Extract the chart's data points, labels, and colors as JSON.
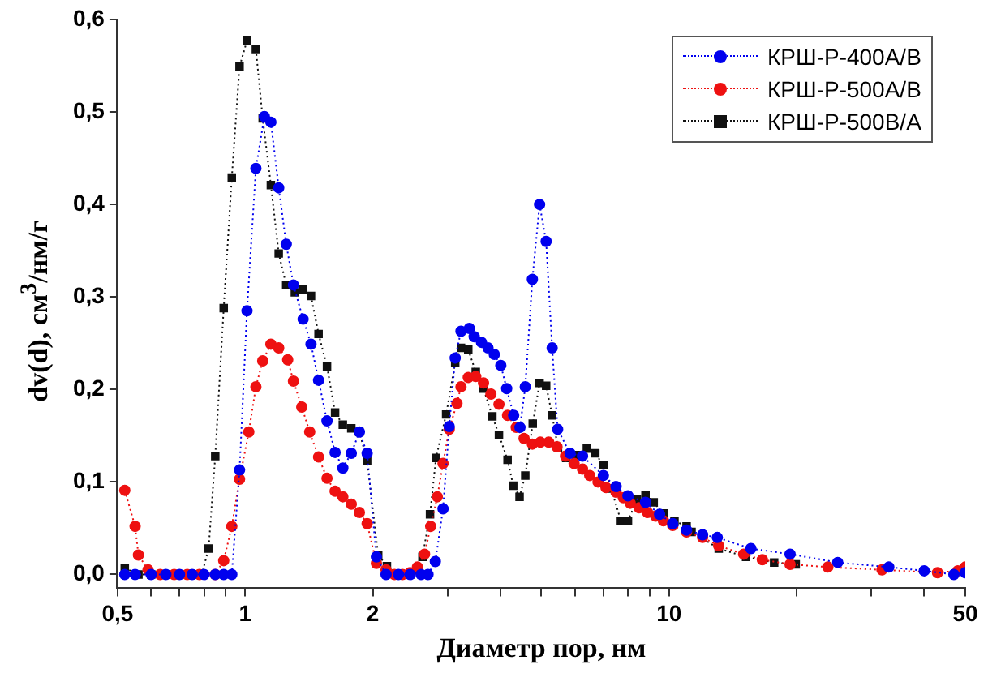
{
  "chart_data": {
    "type": "line",
    "xlabel": "Диаметр пор, нм",
    "ylabel": "dv(d), см$^{3}$/нм/г",
    "log": "x",
    "xlim": [
      0.5,
      50
    ],
    "xticks": [
      {
        "value": 0.5,
        "label": "0,5"
      },
      {
        "value": 0.6,
        "label": null
      },
      {
        "value": 0.7,
        "label": null
      },
      {
        "value": 0.8,
        "label": null
      },
      {
        "value": 0.9,
        "label": null
      },
      1,
      2,
      {
        "value": 3,
        "label": null
      },
      {
        "value": 4,
        "label": null
      },
      {
        "value": 5,
        "label": null
      },
      {
        "value": 6,
        "label": null
      },
      {
        "value": 7,
        "label": null
      },
      {
        "value": 8,
        "label": null
      },
      {
        "value": 9,
        "label": null
      },
      10,
      {
        "value": 20,
        "label": null
      },
      {
        "value": 30,
        "label": null
      },
      {
        "value": 40,
        "label": null
      },
      50
    ],
    "ylim": [
      -0.015,
      0.6
    ],
    "yticks": [
      {
        "value": 0,
        "label": "0,0"
      },
      {
        "value": 0.1,
        "label": "0,1"
      },
      {
        "value": 0.2,
        "label": "0,2"
      },
      {
        "value": 0.3,
        "label": "0,3"
      },
      {
        "value": 0.4,
        "label": "0,4"
      },
      {
        "value": 0.5,
        "label": "0,5"
      },
      {
        "value": 0.6,
        "label": "0,6"
      }
    ],
    "grid": false,
    "legend": "top right",
    "line_style": "dotted",
    "series": [
      {
        "name": "КРШ-Р-400А/В",
        "color": "#0000ee",
        "marker": "circle",
        "x": [
          0.52,
          0.55,
          0.6,
          0.65,
          0.7,
          0.75,
          0.8,
          0.85,
          0.89,
          0.93,
          0.97,
          1.01,
          1.06,
          1.11,
          1.15,
          1.2,
          1.25,
          1.3,
          1.37,
          1.43,
          1.49,
          1.56,
          1.63,
          1.7,
          1.78,
          1.86,
          1.94,
          2.04,
          2.15,
          2.3,
          2.45,
          2.6,
          2.7,
          2.81,
          2.93,
          3.03,
          3.13,
          3.23,
          3.38,
          3.47,
          3.61,
          3.74,
          3.87,
          4.01,
          4.14,
          4.3,
          4.45,
          4.58,
          4.76,
          4.95,
          5.13,
          5.3,
          5.46,
          5.84,
          6.25,
          7,
          7.5,
          8,
          8.8,
          9.5,
          10.2,
          11,
          12,
          13,
          15.6,
          19.3,
          25,
          33,
          40,
          47,
          50
        ],
        "values": [
          0,
          0,
          0,
          0,
          0,
          0,
          0,
          0,
          0,
          0,
          0.113,
          0.285,
          0.439,
          0.495,
          0.489,
          0.418,
          0.357,
          0.313,
          0.276,
          0.249,
          0.21,
          0.166,
          0.132,
          0.115,
          0.131,
          0.154,
          0.131,
          0.019,
          0,
          0,
          0,
          0,
          0,
          0.014,
          0.071,
          0.16,
          0.234,
          0.263,
          0.266,
          0.257,
          0.251,
          0.245,
          0.238,
          0.226,
          0.201,
          0.172,
          0.159,
          0.203,
          0.319,
          0.4,
          0.36,
          0.245,
          0.157,
          0.131,
          0.128,
          0.107,
          0.095,
          0.085,
          0.078,
          0.065,
          0.055,
          0.048,
          0.043,
          0.04,
          0.028,
          0.022,
          0.013,
          0.008,
          0.004,
          0,
          0.002
        ]
      },
      {
        "name": "КРШ-Р-500А/В",
        "color": "#ee1111",
        "marker": "circle",
        "x": [
          0.52,
          0.55,
          0.56,
          0.59,
          0.63,
          0.68,
          0.73,
          0.78,
          0.85,
          0.89,
          0.93,
          0.97,
          1.02,
          1.06,
          1.1,
          1.15,
          1.2,
          1.26,
          1.3,
          1.36,
          1.42,
          1.49,
          1.56,
          1.63,
          1.7,
          1.78,
          1.86,
          1.94,
          2.04,
          2.15,
          2.25,
          2.35,
          2.45,
          2.55,
          2.65,
          2.74,
          2.84,
          2.93,
          3.03,
          3.16,
          3.23,
          3.36,
          3.5,
          3.65,
          3.8,
          3.97,
          4.16,
          4.36,
          4.55,
          4.76,
          4.97,
          5.2,
          5.44,
          5.7,
          5.97,
          6.25,
          6.5,
          6.8,
          7.1,
          7.5,
          7.8,
          8.1,
          8.5,
          8.9,
          9.3,
          9.7,
          10.2,
          11,
          12,
          13.1,
          15,
          16.6,
          19.3,
          23.7,
          31.8,
          43,
          48,
          50
        ],
        "values": [
          0.091,
          0.052,
          0.021,
          0.005,
          0,
          0,
          0,
          0,
          0,
          0.015,
          0.052,
          0.103,
          0.154,
          0.203,
          0.231,
          0.249,
          0.245,
          0.232,
          0.209,
          0.181,
          0.154,
          0.127,
          0.104,
          0.09,
          0.084,
          0.076,
          0.067,
          0.055,
          0.012,
          0.005,
          0,
          0,
          0.002,
          0.008,
          0.022,
          0.052,
          0.084,
          0.12,
          0.157,
          0.185,
          0.203,
          0.213,
          0.214,
          0.207,
          0.195,
          0.184,
          0.172,
          0.159,
          0.147,
          0.141,
          0.143,
          0.143,
          0.138,
          0.128,
          0.12,
          0.114,
          0.107,
          0.1,
          0.094,
          0.089,
          0.083,
          0.077,
          0.072,
          0.067,
          0.063,
          0.058,
          0.053,
          0.046,
          0.04,
          0.031,
          0.022,
          0.016,
          0.011,
          0.008,
          0.005,
          0.002,
          0.004,
          0.008
        ]
      },
      {
        "name": "КРШ-Р-500В/А",
        "color": "#111111",
        "marker": "square",
        "x": [
          0.52,
          0.56,
          0.6,
          0.65,
          0.7,
          0.75,
          0.79,
          0.82,
          0.85,
          0.89,
          0.93,
          0.97,
          1.01,
          1.06,
          1.1,
          1.15,
          1.2,
          1.25,
          1.31,
          1.37,
          1.43,
          1.49,
          1.56,
          1.63,
          1.7,
          1.78,
          1.86,
          1.94,
          2.06,
          2.16,
          2.3,
          2.45,
          2.55,
          2.62,
          2.73,
          2.82,
          2.98,
          3.13,
          3.23,
          3.36,
          3.5,
          3.65,
          3.83,
          3.97,
          4.16,
          4.29,
          4.44,
          4.58,
          4.77,
          4.95,
          5.13,
          5.3,
          5.47,
          5.72,
          6.06,
          6.4,
          6.7,
          7,
          7.3,
          7.7,
          8,
          8.4,
          8.8,
          9.2,
          9.7,
          10.3,
          11,
          11.3,
          13.1,
          15.2,
          17.7,
          19.9
        ],
        "values": [
          0.007,
          0,
          0,
          0,
          0,
          0,
          0,
          0.028,
          0.128,
          0.288,
          0.429,
          0.549,
          0.577,
          0.568,
          0.493,
          0.421,
          0.347,
          0.313,
          0.305,
          0.308,
          0.301,
          0.26,
          0.225,
          0.175,
          0.162,
          0.158,
          0.154,
          0.123,
          0.021,
          0.009,
          0,
          0,
          0.005,
          0.019,
          0.065,
          0.126,
          0.173,
          0.229,
          0.245,
          0.243,
          0.219,
          0.201,
          0.171,
          0.151,
          0.124,
          0.096,
          0.084,
          0.107,
          0.163,
          0.207,
          0.204,
          0.172,
          0.137,
          0.126,
          0.129,
          0.136,
          0.131,
          0.118,
          0.093,
          0.058,
          0.058,
          0.081,
          0.086,
          0.078,
          0.066,
          0.058,
          0.052,
          0.046,
          0.028,
          0.019,
          0.013,
          0.011
        ]
      }
    ]
  }
}
